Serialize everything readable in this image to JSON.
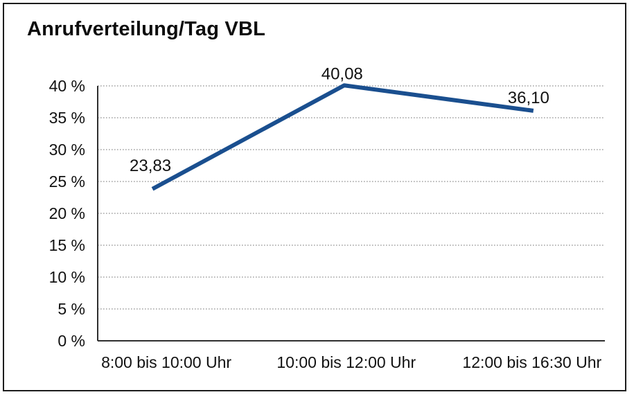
{
  "chart_data": {
    "type": "line",
    "title": "Anrufverteilung/Tag VBL",
    "categories": [
      "8:00 bis 10:00 Uhr",
      "10:00 bis 12:00 Uhr",
      "12:00 bis 16:30 Uhr"
    ],
    "values": [
      23.83,
      40.08,
      36.1
    ],
    "data_labels": [
      "23,83",
      "40,08",
      "36,10"
    ],
    "ytick_labels": [
      "0 %",
      "5 %",
      "10 %",
      "15 %",
      "20 %",
      "25 %",
      "30 %",
      "35 %",
      "40 %"
    ],
    "ytick_step": 5,
    "ylim": [
      0,
      40
    ],
    "xlabel": "",
    "ylabel": "",
    "grid": "horizontal-dotted",
    "legend": "none",
    "colors": {
      "line": "#1a4f8f",
      "grid": "#8f8f8f",
      "axis": "#2e2e2e",
      "text": "#111111",
      "frame_border": "#1c1c1c",
      "background": "#ffffff"
    }
  }
}
